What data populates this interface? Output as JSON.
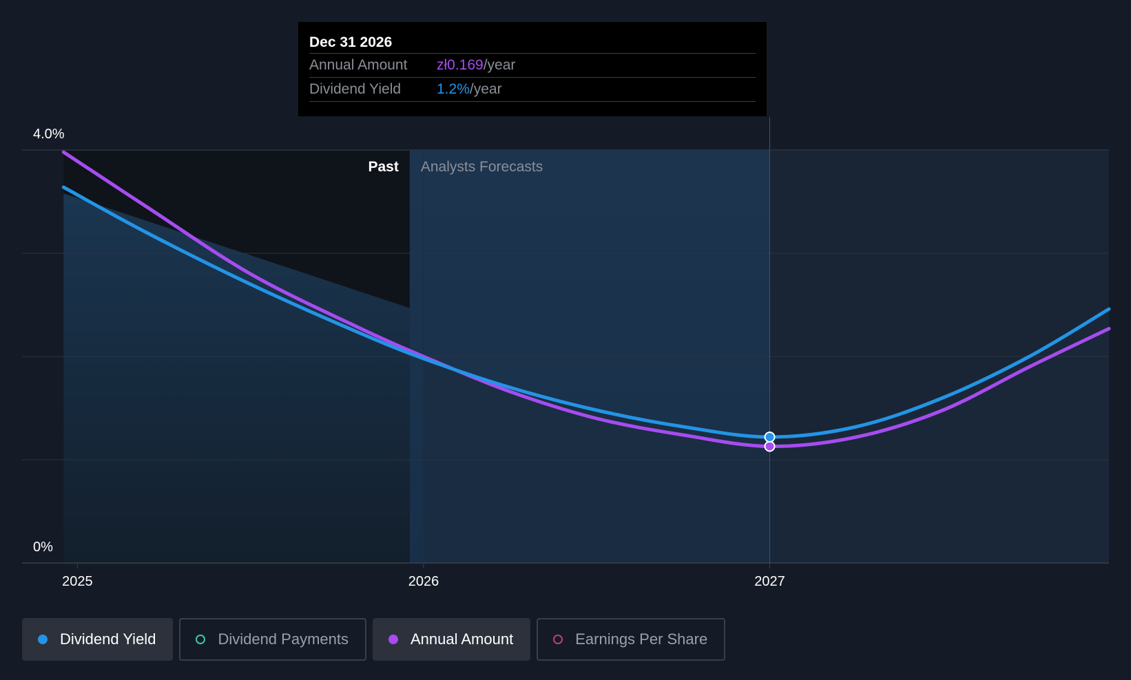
{
  "tooltip": {
    "date": "Dec 31 2026",
    "rows": [
      {
        "label": "Annual Amount",
        "value": "zł0.169",
        "suffix": "/year",
        "color": "#a64cf0"
      },
      {
        "label": "Dividend Yield",
        "value": "1.2%",
        "suffix": "/year",
        "color": "#2394e6"
      }
    ]
  },
  "legend": [
    {
      "label": "Dividend Yield",
      "color": "#2394e6",
      "active": true,
      "filled": true
    },
    {
      "label": "Dividend Payments",
      "color": "#3fc7b4",
      "active": false,
      "filled": false
    },
    {
      "label": "Annual Amount",
      "color": "#a64cf0",
      "active": true,
      "filled": true
    },
    {
      "label": "Earnings Per Share",
      "color": "#c0406e",
      "active": false,
      "filled": false
    }
  ],
  "chart_data": {
    "type": "line",
    "y_unit": "%",
    "ylim": [
      0,
      4.0
    ],
    "y_ticks": [
      0,
      1,
      2,
      3,
      4
    ],
    "y_tick_labels": [
      {
        "value": 0,
        "label": "0%"
      },
      {
        "value": 4.0,
        "label": "4.0%"
      }
    ],
    "x_ticks": [
      {
        "value": 2025,
        "label": "2025"
      },
      {
        "value": 2026,
        "label": "2026"
      },
      {
        "value": 2027,
        "label": "2027"
      }
    ],
    "xlim": [
      2024.84,
      2027.98
    ],
    "past_end": 2025.96,
    "forecast_start": 2026.0,
    "highlight_x": 2027.0,
    "past_label": "Past",
    "forecast_label": "Analysts Forecasts",
    "grid": true,
    "series": [
      {
        "name": "Dividend Yield",
        "color": "#2394e6",
        "x": [
          2024.96,
          2025.2,
          2025.5,
          2025.8,
          2026.0,
          2026.25,
          2026.5,
          2026.75,
          2027.0,
          2027.25,
          2027.5,
          2027.75,
          2027.98
        ],
        "values": [
          3.64,
          3.2,
          2.7,
          2.25,
          1.98,
          1.7,
          1.48,
          1.32,
          1.22,
          1.32,
          1.6,
          2.0,
          2.46
        ]
      },
      {
        "name": "Annual Amount",
        "color": "#a64cf0",
        "x": [
          2024.96,
          2025.2,
          2025.5,
          2025.8,
          2026.0,
          2026.25,
          2026.5,
          2026.75,
          2027.0,
          2027.25,
          2027.5,
          2027.75,
          2027.98
        ],
        "values": [
          3.98,
          3.45,
          2.8,
          2.3,
          2.0,
          1.66,
          1.4,
          1.24,
          1.13,
          1.22,
          1.48,
          1.9,
          2.27
        ]
      }
    ],
    "past_area": {
      "name": "Dividend Yield history",
      "x": [
        2024.96,
        2025.96
      ],
      "values": [
        3.58,
        2.47
      ]
    }
  }
}
